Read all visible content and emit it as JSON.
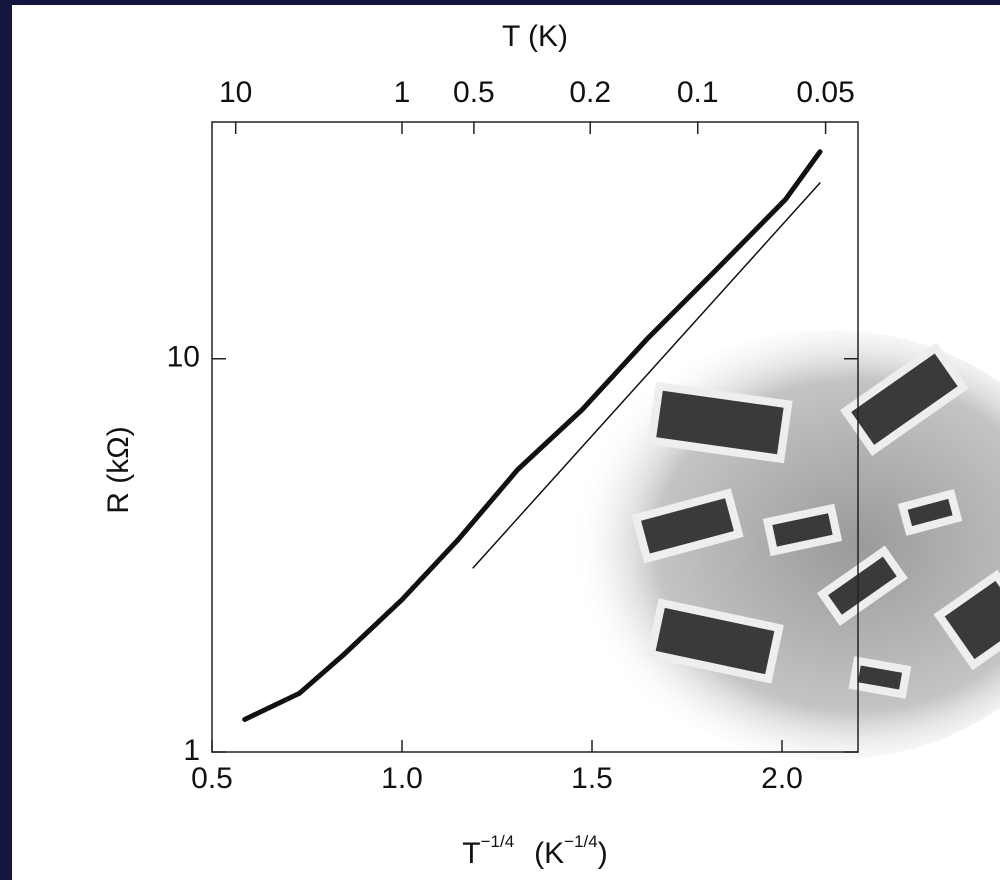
{
  "chart_data": {
    "type": "line",
    "x2label": "T (K)",
    "ylabel": "R (kΩ)",
    "xlabel": [
      "T",
      "−1/4",
      "(K",
      "−1/4",
      ")"
    ],
    "xlim": [
      0.5,
      2.2
    ],
    "xticks": [
      0.5,
      {
        "value": 1,
        "label": "1.0"
      },
      1.5,
      {
        "value": 2,
        "label": "2.0"
      }
    ],
    "x2ticks": [
      10,
      1,
      0.5,
      0.2,
      0.1,
      0.05
    ],
    "ylim": [
      1,
      40
    ],
    "yticks": [
      1,
      10
    ],
    "log_y": true,
    "series": [
      {
        "color": "#111111",
        "width": 5,
        "x": [
          0.586,
          0.73,
          0.847,
          1.0,
          1.147,
          1.304,
          1.474,
          1.644,
          1.826,
          2.009,
          2.1
        ],
        "values": [
          1.21,
          1.41,
          1.77,
          2.44,
          3.46,
          5.22,
          7.42,
          11.2,
          16.8,
          25.4,
          33.6
        ]
      },
      {
        "color": "#111111",
        "width": 1.5,
        "x": [
          1.187,
          2.1
        ],
        "values": [
          2.94,
          28.0
        ]
      }
    ]
  }
}
